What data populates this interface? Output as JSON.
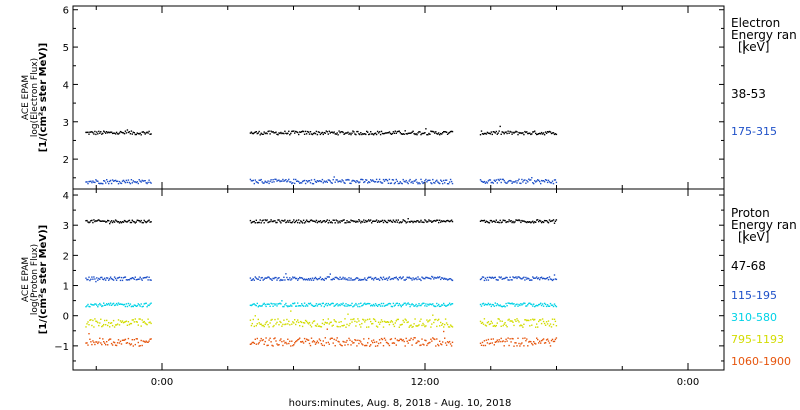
{
  "chart_data": [
    {
      "type": "scatter",
      "title": "",
      "ylabel_lines": [
        "ACE EPAM",
        "log(Electron Flux)",
        "[1/(cm²s ster MeV)]"
      ],
      "ylim": [
        1.2,
        6.1
      ],
      "yticks": [
        2,
        3,
        4,
        5,
        6
      ],
      "legend_title_lines": [
        "Electron",
        "Energy ran",
        "[keV]"
      ],
      "series": [
        {
          "name": "38-53",
          "color": "#000000",
          "level": 2.72,
          "segments": [
            [
              "20:30",
              "23:30"
            ],
            [
              "04:00",
              "13:15"
            ],
            [
              "14:30",
              "18:00"
            ]
          ]
        },
        {
          "name": "175-315",
          "color": "#1e50c8",
          "level": 1.42,
          "segments": [
            [
              "20:30",
              "23:30"
            ],
            [
              "04:00",
              "13:15"
            ],
            [
              "14:30",
              "18:00"
            ]
          ]
        }
      ]
    },
    {
      "type": "scatter",
      "title": "",
      "ylabel_lines": [
        "ACE EPAM",
        "log(Proton Flux)",
        "[1/(cm²s ster MeV)]"
      ],
      "ylim": [
        -1.8,
        4.2
      ],
      "yticks": [
        -1,
        0,
        1,
        2,
        3,
        4
      ],
      "legend_title_lines": [
        "Proton",
        "Energy ran",
        "[keV]"
      ],
      "series": [
        {
          "name": "47-68",
          "color": "#000000",
          "level": 3.15,
          "segments": [
            [
              "20:30",
              "23:30"
            ],
            [
              "04:00",
              "13:15"
            ],
            [
              "14:30",
              "18:00"
            ]
          ]
        },
        {
          "name": "115-195",
          "color": "#1e50c8",
          "level": 1.25,
          "segments": [
            [
              "20:30",
              "23:30"
            ],
            [
              "04:00",
              "13:15"
            ],
            [
              "14:30",
              "18:00"
            ]
          ]
        },
        {
          "name": "310-580",
          "color": "#00d2e6",
          "level": 0.38,
          "segments": [
            [
              "20:30",
              "23:30"
            ],
            [
              "04:00",
              "13:15"
            ],
            [
              "14:30",
              "18:00"
            ]
          ]
        },
        {
          "name": "795-1193",
          "color": "#d2dc00",
          "level": -0.22,
          "segments": [
            [
              "20:30",
              "23:30"
            ],
            [
              "04:00",
              "13:15"
            ],
            [
              "14:30",
              "18:00"
            ]
          ]
        },
        {
          "name": "1060-1900",
          "color": "#e6550d",
          "level": -0.85,
          "segments": [
            [
              "20:30",
              "23:30"
            ],
            [
              "04:00",
              "13:15"
            ],
            [
              "14:30",
              "18:00"
            ]
          ]
        }
      ]
    }
  ],
  "x_axis": {
    "ticks": [
      "0:00",
      "12:00",
      "0:00"
    ],
    "xlabel": "hours:minutes, Aug.  8, 2018 - Aug. 10, 2018"
  }
}
